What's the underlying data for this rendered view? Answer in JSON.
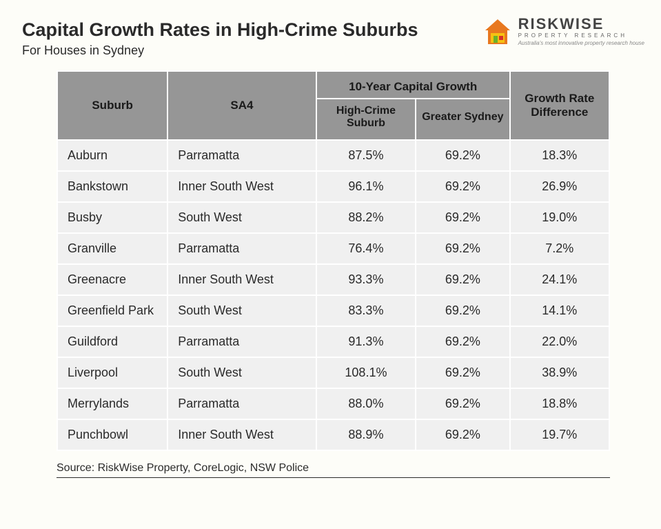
{
  "header": {
    "title": "Capital Growth Rates in High-Crime Suburbs",
    "subtitle": "For Houses in Sydney"
  },
  "logo": {
    "name": "RISKWISE",
    "sub": "PROPERTY RESEARCH",
    "tagline": "Australia's most innovative property research house",
    "colors": {
      "orange": "#e8781f",
      "yellow": "#f6c212",
      "green": "#6bb22a",
      "red": "#d7312c"
    }
  },
  "table": {
    "headers": {
      "suburb": "Suburb",
      "sa4": "SA4",
      "spanning": "10-Year Capital Growth",
      "col_high": "High-Crime Suburb",
      "col_sydney": "Greater Sydney",
      "col_diff": "Growth Rate Difference"
    },
    "rows": [
      {
        "suburb": "Auburn",
        "sa4": "Parramatta",
        "high": "87.5%",
        "syd": "69.2%",
        "diff": "18.3%"
      },
      {
        "suburb": "Bankstown",
        "sa4": "Inner South West",
        "high": "96.1%",
        "syd": "69.2%",
        "diff": "26.9%"
      },
      {
        "suburb": "Busby",
        "sa4": "South West",
        "high": "88.2%",
        "syd": "69.2%",
        "diff": "19.0%"
      },
      {
        "suburb": "Granville",
        "sa4": "Parramatta",
        "high": "76.4%",
        "syd": "69.2%",
        "diff": "7.2%"
      },
      {
        "suburb": "Greenacre",
        "sa4": "Inner South West",
        "high": "93.3%",
        "syd": "69.2%",
        "diff": "24.1%"
      },
      {
        "suburb": "Greenfield Park",
        "sa4": "South West",
        "high": "83.3%",
        "syd": "69.2%",
        "diff": "14.1%"
      },
      {
        "suburb": "Guildford",
        "sa4": "Parramatta",
        "high": "91.3%",
        "syd": "69.2%",
        "diff": "22.0%"
      },
      {
        "suburb": "Liverpool",
        "sa4": "South West",
        "high": "108.1%",
        "syd": "69.2%",
        "diff": "38.9%"
      },
      {
        "suburb": "Merrylands",
        "sa4": "Parramatta",
        "high": "88.0%",
        "syd": "69.2%",
        "diff": "18.8%"
      },
      {
        "suburb": "Punchbowl",
        "sa4": "Inner South West",
        "high": "88.9%",
        "syd": "69.2%",
        "diff": "19.7%"
      }
    ],
    "header_bg": "#969696",
    "cell_bg": "#f0f0f0",
    "page_bg": "#fdfdf8",
    "col_widths": {
      "suburb": "20%",
      "sa4": "27%",
      "high": "18%",
      "syd": "17%",
      "diff": "18%"
    }
  },
  "source": "Source: RiskWise Property, CoreLogic, NSW Police"
}
